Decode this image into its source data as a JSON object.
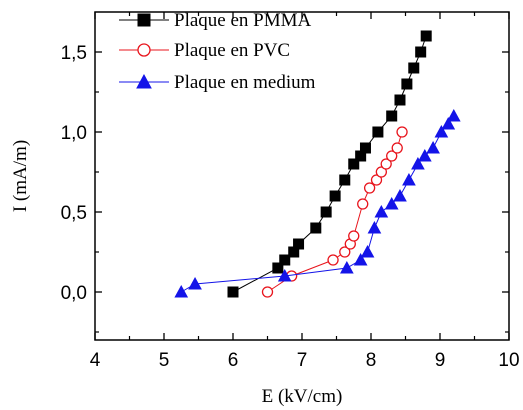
{
  "chart_data": {
    "type": "line",
    "title": "",
    "xlabel": "E (kV/cm)",
    "ylabel": "I (mA/m)",
    "xlim": [
      4,
      10
    ],
    "ylim": [
      -0.3,
      1.75
    ],
    "x_ticks": [
      4,
      5,
      6,
      7,
      8,
      9,
      10
    ],
    "x_tick_labels": [
      "4",
      "5",
      "6",
      "7",
      "8",
      "9",
      "10"
    ],
    "y_ticks": [
      0.0,
      0.5,
      1.0,
      1.5
    ],
    "y_tick_labels": [
      "0,0",
      "0,5",
      "1,0",
      "1,5"
    ],
    "grid": false,
    "legend_position": "top-left",
    "series": [
      {
        "name": "Plaque en PMMA",
        "color": "#000000",
        "marker": "filled-square",
        "x": [
          6.0,
          6.65,
          6.75,
          6.88,
          6.95,
          7.2,
          7.35,
          7.48,
          7.62,
          7.75,
          7.85,
          7.92,
          8.1,
          8.3,
          8.42,
          8.52,
          8.62,
          8.72,
          8.8
        ],
        "y": [
          0.0,
          0.15,
          0.2,
          0.25,
          0.3,
          0.4,
          0.5,
          0.6,
          0.7,
          0.8,
          0.85,
          0.9,
          1.0,
          1.1,
          1.2,
          1.3,
          1.4,
          1.5,
          1.6
        ]
      },
      {
        "name": "Plaque en PVC",
        "color": "#e8141c",
        "marker": "open-circle",
        "x": [
          6.5,
          6.85,
          7.45,
          7.62,
          7.7,
          7.75,
          7.88,
          7.98,
          8.08,
          8.15,
          8.22,
          8.3,
          8.38,
          8.45
        ],
        "y": [
          0.0,
          0.1,
          0.2,
          0.25,
          0.3,
          0.35,
          0.55,
          0.65,
          0.7,
          0.75,
          0.8,
          0.85,
          0.9,
          1.0
        ]
      },
      {
        "name": "Plaque en medium",
        "color": "#1414e8",
        "marker": "filled-triangle",
        "x": [
          5.25,
          5.45,
          6.75,
          7.65,
          7.85,
          7.95,
          8.05,
          8.15,
          8.3,
          8.42,
          8.55,
          8.68,
          8.78,
          8.9,
          9.02,
          9.12,
          9.2
        ],
        "y": [
          0.0,
          0.05,
          0.1,
          0.15,
          0.2,
          0.25,
          0.4,
          0.5,
          0.55,
          0.6,
          0.7,
          0.8,
          0.85,
          0.9,
          1.0,
          1.05,
          1.1
        ]
      }
    ]
  }
}
